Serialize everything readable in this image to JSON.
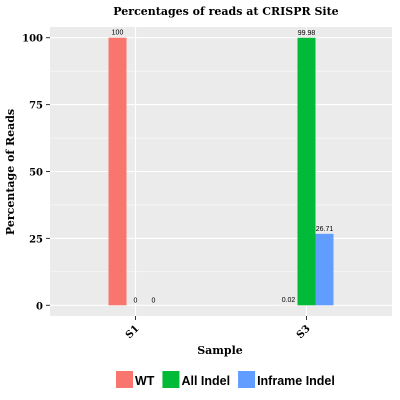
{
  "chart_data": {
    "type": "bar",
    "title": "Percentages of reads at CRISPR Site",
    "xlabel": "Sample",
    "ylabel": "Percentage of Reads",
    "categories": [
      "S1",
      "S3"
    ],
    "series": [
      {
        "name": "WT",
        "values": [
          100,
          0.02
        ],
        "labels": [
          "100",
          "0.02"
        ],
        "color": "#F8766D"
      },
      {
        "name": "All Indel",
        "values": [
          0,
          99.98
        ],
        "labels": [
          "0",
          "99.98"
        ],
        "color": "#00BA38"
      },
      {
        "name": "Inframe Indel",
        "values": [
          0,
          26.71
        ],
        "labels": [
          "0",
          "26.71"
        ],
        "color": "#619CFF"
      }
    ],
    "ylim": [
      -4,
      104
    ],
    "yticks": [
      0,
      25,
      50,
      75,
      100
    ],
    "ytick_labels": [
      "0",
      "25",
      "50",
      "75",
      "100"
    ],
    "grid": true,
    "legend_position": "bottom",
    "background": "#EBEBEB",
    "gridline_color": "#FFFFFF"
  }
}
